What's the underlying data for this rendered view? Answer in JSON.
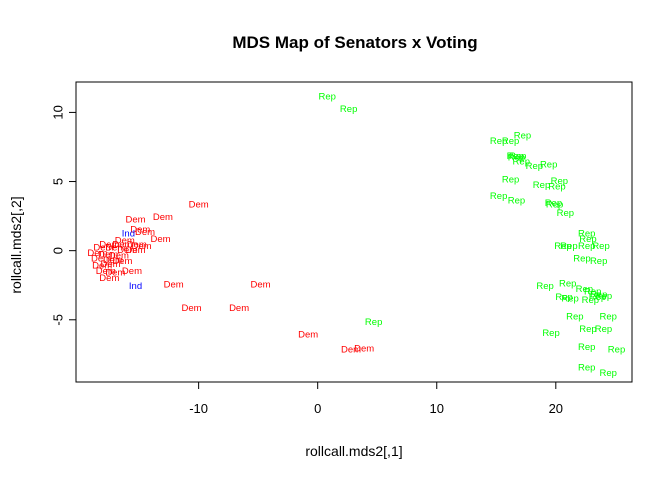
{
  "chart_data": {
    "type": "scatter",
    "title": "MDS Map of Senators x Voting",
    "xlabel": "rollcall.mds2[,1]",
    "ylabel": "rollcall.mds2[,2]",
    "xlim": [
      -20.3,
      26.4
    ],
    "ylim": [
      -9.5,
      12.2
    ],
    "xticks": [
      -10,
      0,
      10,
      20
    ],
    "yticks": [
      -5,
      0,
      5,
      10
    ],
    "grid": false,
    "legend": "none",
    "colors": {
      "Dem": "#ff0000",
      "Rep": "#00ff00",
      "Ind": "#0000ff"
    },
    "points": [
      {
        "x": 0.8,
        "y": 11.1,
        "label": "Rep"
      },
      {
        "x": 2.6,
        "y": 10.2,
        "label": "Rep"
      },
      {
        "x": 15.2,
        "y": 7.9,
        "label": "Rep"
      },
      {
        "x": 16.2,
        "y": 7.9,
        "label": "Rep"
      },
      {
        "x": 17.2,
        "y": 8.3,
        "label": "Rep"
      },
      {
        "x": 16.6,
        "y": 6.8,
        "label": "Rep"
      },
      {
        "x": 16.7,
        "y": 6.7,
        "label": "Rep"
      },
      {
        "x": 16.8,
        "y": 6.8,
        "label": "Rep"
      },
      {
        "x": 17.1,
        "y": 6.4,
        "label": "Rep"
      },
      {
        "x": 18.2,
        "y": 6.1,
        "label": "Rep"
      },
      {
        "x": 19.4,
        "y": 6.2,
        "label": "Rep"
      },
      {
        "x": 16.2,
        "y": 5.1,
        "label": "Rep"
      },
      {
        "x": 18.8,
        "y": 4.7,
        "label": "Rep"
      },
      {
        "x": 20.1,
        "y": 4.6,
        "label": "Rep"
      },
      {
        "x": 20.3,
        "y": 5.0,
        "label": "Rep"
      },
      {
        "x": 15.2,
        "y": 3.9,
        "label": "Rep"
      },
      {
        "x": 16.7,
        "y": 3.6,
        "label": "Rep"
      },
      {
        "x": 19.8,
        "y": 3.4,
        "label": "Rep"
      },
      {
        "x": 19.9,
        "y": 3.3,
        "label": "Rep"
      },
      {
        "x": 20.8,
        "y": 2.7,
        "label": "Rep"
      },
      {
        "x": 22.6,
        "y": 1.2,
        "label": "Rep"
      },
      {
        "x": 22.7,
        "y": 0.8,
        "label": "Rep"
      },
      {
        "x": 20.6,
        "y": 0.3,
        "label": "Rep"
      },
      {
        "x": 21.1,
        "y": 0.3,
        "label": "Rep"
      },
      {
        "x": 22.6,
        "y": 0.3,
        "label": "Rep"
      },
      {
        "x": 23.8,
        "y": 0.3,
        "label": "Rep"
      },
      {
        "x": 22.2,
        "y": -0.6,
        "label": "Rep"
      },
      {
        "x": 23.6,
        "y": -0.8,
        "label": "Rep"
      },
      {
        "x": 19.1,
        "y": -2.6,
        "label": "Rep"
      },
      {
        "x": 21.0,
        "y": -2.4,
        "label": "Rep"
      },
      {
        "x": 22.4,
        "y": -2.8,
        "label": "Rep"
      },
      {
        "x": 23.1,
        "y": -3.0,
        "label": "Rep"
      },
      {
        "x": 23.6,
        "y": -3.2,
        "label": "Rep"
      },
      {
        "x": 20.7,
        "y": -3.4,
        "label": "Rep"
      },
      {
        "x": 21.2,
        "y": -3.5,
        "label": "Rep"
      },
      {
        "x": 22.9,
        "y": -3.6,
        "label": "Rep"
      },
      {
        "x": 23.5,
        "y": -3.4,
        "label": "Rep"
      },
      {
        "x": 24.0,
        "y": -3.3,
        "label": "Rep"
      },
      {
        "x": 21.6,
        "y": -4.8,
        "label": "Rep"
      },
      {
        "x": 24.4,
        "y": -4.8,
        "label": "Rep"
      },
      {
        "x": 22.7,
        "y": -5.7,
        "label": "Rep"
      },
      {
        "x": 24.0,
        "y": -5.7,
        "label": "Rep"
      },
      {
        "x": 19.6,
        "y": -6.0,
        "label": "Rep"
      },
      {
        "x": 22.6,
        "y": -7.0,
        "label": "Rep"
      },
      {
        "x": 25.1,
        "y": -7.2,
        "label": "Rep"
      },
      {
        "x": 22.6,
        "y": -8.5,
        "label": "Rep"
      },
      {
        "x": 24.4,
        "y": -8.9,
        "label": "Rep"
      },
      {
        "x": 4.7,
        "y": -5.2,
        "label": "Rep"
      },
      {
        "x": -10.0,
        "y": 3.3,
        "label": "Dem"
      },
      {
        "x": -13.0,
        "y": 2.4,
        "label": "Dem"
      },
      {
        "x": -15.3,
        "y": 2.2,
        "label": "Dem"
      },
      {
        "x": -14.9,
        "y": 1.5,
        "label": "Dem"
      },
      {
        "x": -15.9,
        "y": 1.2,
        "label": "Ind"
      },
      {
        "x": -14.5,
        "y": 1.3,
        "label": "Dem"
      },
      {
        "x": -13.2,
        "y": 0.8,
        "label": "Dem"
      },
      {
        "x": -16.2,
        "y": 0.7,
        "label": "Dem"
      },
      {
        "x": -17.5,
        "y": 0.4,
        "label": "Dem"
      },
      {
        "x": -16.4,
        "y": 0.4,
        "label": "Dem"
      },
      {
        "x": -15.2,
        "y": 0.4,
        "label": "Dem"
      },
      {
        "x": -14.8,
        "y": 0.3,
        "label": "Dem"
      },
      {
        "x": -18.0,
        "y": 0.2,
        "label": "Dem"
      },
      {
        "x": -17.0,
        "y": 0.2,
        "label": "Dem"
      },
      {
        "x": -16.0,
        "y": 0.0,
        "label": "Dem"
      },
      {
        "x": -15.3,
        "y": 0.0,
        "label": "Dem"
      },
      {
        "x": -18.5,
        "y": -0.2,
        "label": "Dem"
      },
      {
        "x": -17.6,
        "y": -0.3,
        "label": "Dem"
      },
      {
        "x": -16.7,
        "y": -0.4,
        "label": "Dem"
      },
      {
        "x": -18.2,
        "y": -0.6,
        "label": "Dem"
      },
      {
        "x": -17.2,
        "y": -0.7,
        "label": "Dem"
      },
      {
        "x": -16.4,
        "y": -0.8,
        "label": "Dem"
      },
      {
        "x": -18.1,
        "y": -1.1,
        "label": "Dem"
      },
      {
        "x": -17.4,
        "y": -1.0,
        "label": "Dem"
      },
      {
        "x": -17.8,
        "y": -1.5,
        "label": "Dem"
      },
      {
        "x": -17.0,
        "y": -1.6,
        "label": "Dem"
      },
      {
        "x": -15.6,
        "y": -1.5,
        "label": "Dem"
      },
      {
        "x": -17.5,
        "y": -2.0,
        "label": "Dem"
      },
      {
        "x": -15.3,
        "y": -2.6,
        "label": "Ind"
      },
      {
        "x": -12.1,
        "y": -2.5,
        "label": "Dem"
      },
      {
        "x": -4.8,
        "y": -2.5,
        "label": "Dem"
      },
      {
        "x": -10.6,
        "y": -4.2,
        "label": "Dem"
      },
      {
        "x": -6.6,
        "y": -4.2,
        "label": "Dem"
      },
      {
        "x": -0.8,
        "y": -6.1,
        "label": "Dem"
      },
      {
        "x": 2.8,
        "y": -7.2,
        "label": "Dem"
      },
      {
        "x": 3.9,
        "y": -7.1,
        "label": "Dem"
      }
    ]
  }
}
